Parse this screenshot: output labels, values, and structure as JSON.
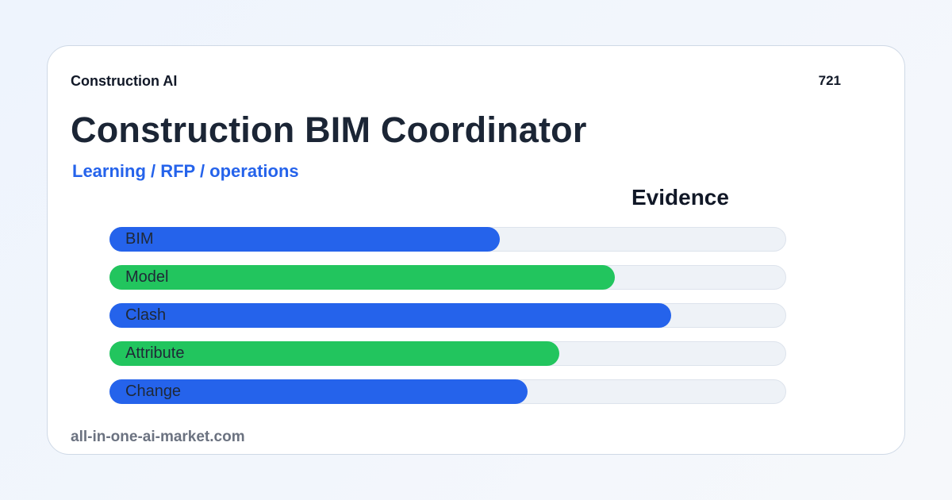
{
  "brand": "Construction AI",
  "count": "721",
  "title": "Construction BIM Coordinator",
  "subtitle": "Learning / RFP / operations",
  "section_title": "Evidence",
  "bars": [
    {
      "label": "BIM",
      "level": 0.577,
      "color": "#2563eb"
    },
    {
      "label": "Model",
      "level": 0.747,
      "color": "#22c55e"
    },
    {
      "label": "Clash",
      "level": 0.83,
      "color": "#2563eb"
    },
    {
      "label": "Attribute",
      "level": 0.665,
      "color": "#22c55e"
    },
    {
      "label": "Change",
      "level": 0.618,
      "color": "#2563eb"
    }
  ],
  "footer": "all-in-one-ai-market.com"
}
